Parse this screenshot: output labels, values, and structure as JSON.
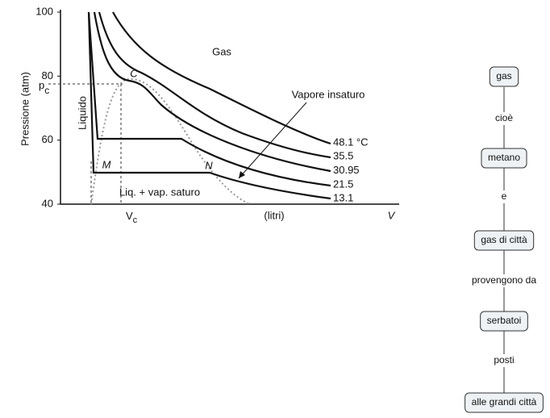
{
  "plot": {
    "y_label": "Pressione (atm)",
    "ylim": [
      40,
      100
    ],
    "yticks": [
      40,
      60,
      80,
      100
    ],
    "pc_main": "p",
    "pc_sub": "c",
    "vc_main": "V",
    "vc_sub": "c",
    "x_unit": "(litri)",
    "x_label": "V",
    "gas": "Gas",
    "critical": "C",
    "liquid": "Liquido",
    "point_m": "M",
    "point_n": "N",
    "two_phase": "Liq. + vap. saturo",
    "vapour": "Vapore insaturo",
    "isotherms": [
      "48.1 °C",
      "35.5",
      "30.95",
      "21.5",
      "13.1"
    ]
  },
  "concept_map": {
    "nodes": [
      "gas",
      "metano",
      "gas di città",
      "serbatoi",
      "alle grandi città"
    ],
    "links": [
      "cioè",
      "e",
      "provengono da",
      "posti"
    ]
  }
}
